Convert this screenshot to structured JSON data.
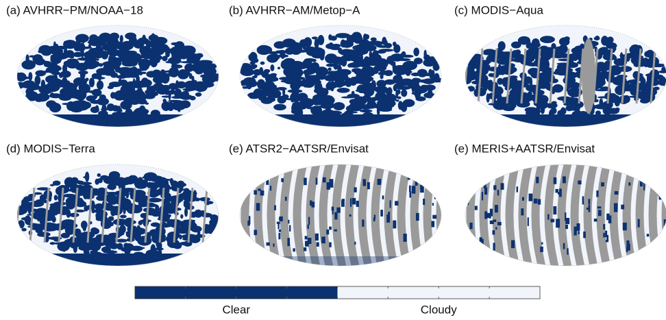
{
  "panels": [
    {
      "title": "(a) AVHRR−PM/NOAA−18"
    },
    {
      "title": "(b) AVHRR−AM/Metop−A"
    },
    {
      "title": "(c) MODIS−Aqua"
    },
    {
      "title": "(d) MODIS−Terra"
    },
    {
      "title": "(e) ATSR2−AATSR/Envisat"
    },
    {
      "title": "(e) MERIS+AATSR/Envisat"
    }
  ],
  "colorbar": {
    "items": [
      {
        "label": "Clear",
        "color": "#0b3170"
      },
      {
        "label": "Cloudy",
        "color": "#f1f5fb"
      }
    ]
  }
}
